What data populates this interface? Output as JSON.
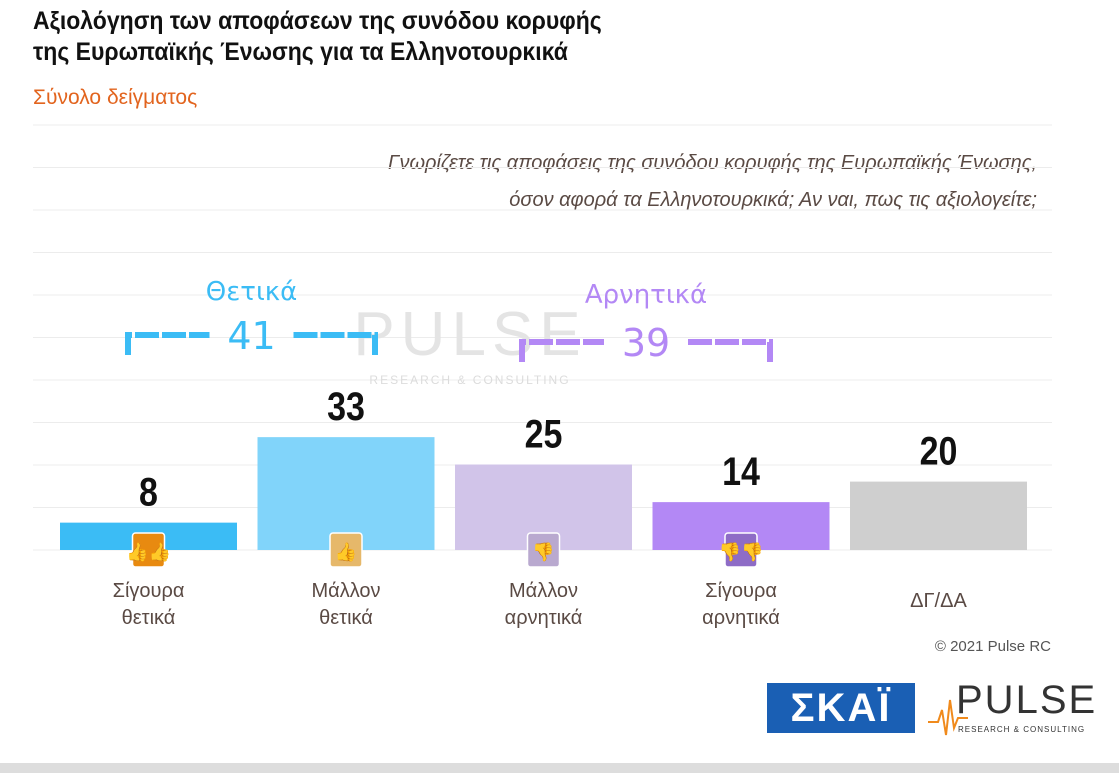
{
  "title_line1": "Αξιολόγηση των αποφάσεων της συνόδου κορυφής",
  "title_line2": "της Ευρωπαϊκής Ένωσης για τα Ελληνοτουρκικά",
  "subtitle": "Σύνολο δείγματος",
  "question_line1": "Γνωρίζετε τις αποφάσεις της συνόδου κορυφής της Ευρωπαϊκής Ένωσης,",
  "question_line2": "όσον αφορά τα Ελληνοτουρκικά; Αν ναι, πως τις αξιολογείτε;",
  "copyright": "© 2021 Pulse RC",
  "logos": {
    "skai": "ΣΚΑΪ",
    "pulse": "PULSE",
    "pulse_sub": "RESEARCH & CONSULTING"
  },
  "chart_data": {
    "type": "bar",
    "categories": [
      [
        "Σίγουρα",
        "θετικά"
      ],
      [
        "Μάλλον",
        "θετικά"
      ],
      [
        "Μάλλον",
        "αρνητικά"
      ],
      [
        "Σίγουρα",
        "αρνητικά"
      ],
      [
        "ΔΓ/ΔΑ"
      ]
    ],
    "values": [
      8,
      33,
      25,
      14,
      20
    ],
    "colors": [
      "#3bbcf5",
      "#81d4fa",
      "#d1c4e9",
      "#b388f5",
      "#cfcfcf"
    ],
    "icons": [
      "double-thumbs-up-icon",
      "thumbs-up-icon",
      "thumbs-down-icon",
      "double-thumbs-down-icon",
      null
    ],
    "icon_colors": [
      "#e88a10",
      "#e6b86a",
      "#b9a9cf",
      "#8e6cc6"
    ],
    "groups": [
      {
        "label": "Θετικά",
        "value": "41",
        "color": "#3bbcf5"
      },
      {
        "label": "Αρνητικά",
        "value": "39",
        "color": "#b388f5"
      }
    ],
    "ylim": [
      0,
      40
    ],
    "grid": true
  }
}
